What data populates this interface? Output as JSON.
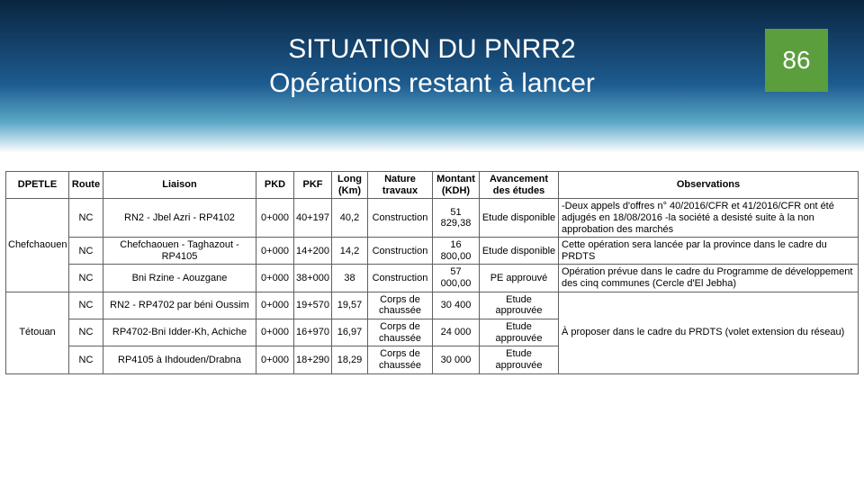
{
  "page_number": "86",
  "title_line1": "SITUATION DU PNRR2",
  "title_line2": "Opérations restant à lancer",
  "headers": {
    "dpetle": "DPETLE",
    "route": "Route",
    "liaison": "Liaison",
    "pkd": "PKD",
    "pkf": "PKF",
    "long": "Long (Km)",
    "nature": "Nature travaux",
    "montant": "Montant (KDH)",
    "avancement": "Avancement des études",
    "observations": "Observations"
  },
  "groups": [
    {
      "dpetle": "Chefchaouen",
      "rows": [
        {
          "route": "NC",
          "liaison": "RN2 - Jbel Azri - RP4102",
          "pkd": "0+000",
          "pkf": "40+197",
          "long": "40,2",
          "nature": "Construction",
          "montant": "51 829,38",
          "avancement": "Etude disponible",
          "obs": "-Deux appels d'offres n° 40/2016/CFR et 41/2016/CFR ont été adjugés en 18/08/2016\n-la société a desisté suite à la non approbation des marchés"
        },
        {
          "route": "NC",
          "liaison": "Chefchaouen - Taghazout - RP4105",
          "pkd": "0+000",
          "pkf": "14+200",
          "long": "14,2",
          "nature": "Construction",
          "montant": "16 800,00",
          "avancement": "Etude disponible",
          "obs": "Cette opération sera lancée par la province dans le cadre du PRDTS"
        },
        {
          "route": "NC",
          "liaison": "Bni Rzine - Aouzgane",
          "pkd": "0+000",
          "pkf": "38+000",
          "long": "38",
          "nature": "Construction",
          "montant": "57 000,00",
          "avancement": "PE approuvé",
          "obs": "Opération prévue dans le cadre du Programme de développement des cinq communes (Cercle d'El Jebha)"
        }
      ]
    },
    {
      "dpetle": "Tétouan",
      "rows": [
        {
          "route": "NC",
          "liaison": "RN2 - RP4702 par béni Oussim",
          "pkd": "0+000",
          "pkf": "19+570",
          "long": "19,57",
          "nature": "Corps de chaussée",
          "montant": "30 400",
          "avancement": "Etude approuvée",
          "obs": ""
        },
        {
          "route": "NC",
          "liaison": "RP4702-Bni Idder-Kh, Achiche",
          "pkd": "0+000",
          "pkf": "16+970",
          "long": "16,97",
          "nature": "Corps de chaussée",
          "montant": "24 000",
          "avancement": "Etude approuvée",
          "obs": ""
        },
        {
          "route": "NC",
          "liaison": "RP4105 à Ihdouden/Drabna",
          "pkd": "0+000",
          "pkf": "18+290",
          "long": "18,29",
          "nature": "Corps de chaussée",
          "montant": "30 000",
          "avancement": "Etude approuvée",
          "obs": ""
        }
      ],
      "group_obs": "À proposer dans le cadre du PRDTS (volet extension du réseau)"
    }
  ],
  "colors": {
    "header_gradient_top": "#0a2540",
    "header_gradient_mid": "#1d5b8f",
    "header_gradient_low": "#5ba8c7",
    "page_number_bg": "#5b9e3e",
    "page_number_fg": "#ffffff",
    "table_border": "#606060"
  }
}
